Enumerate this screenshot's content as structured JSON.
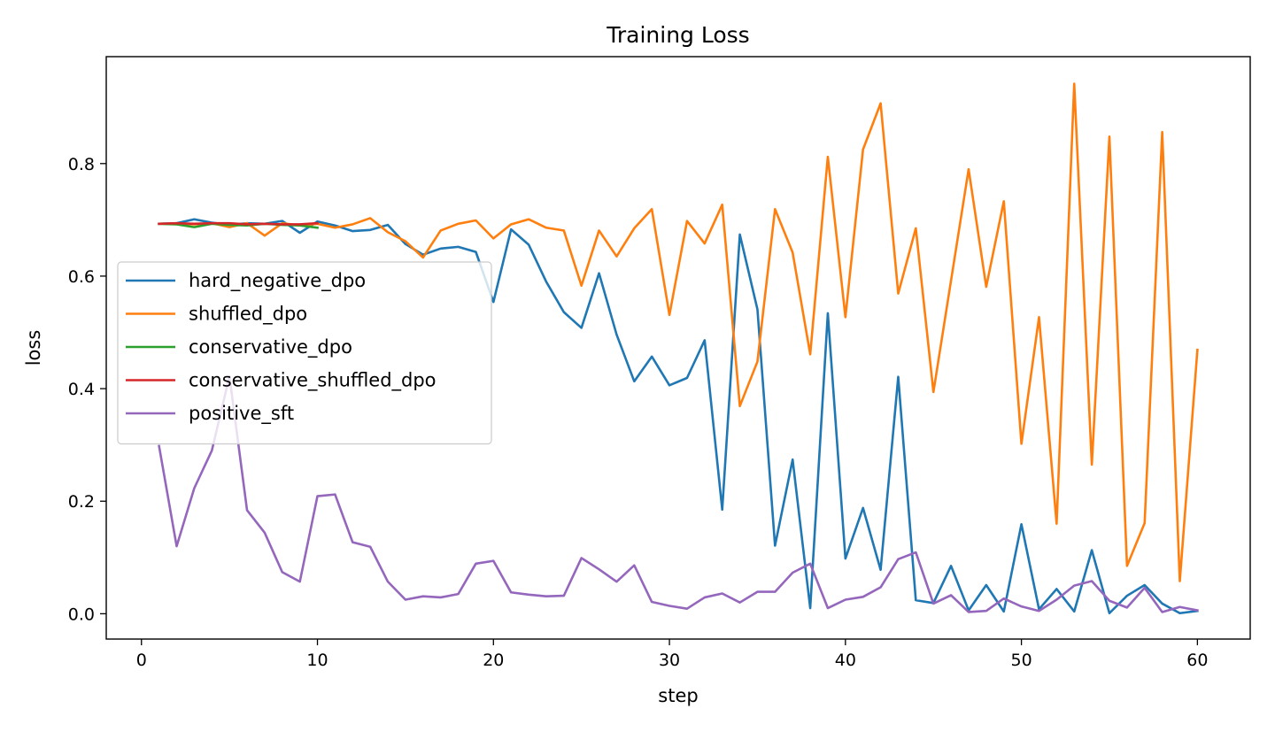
{
  "chart_data": {
    "type": "line",
    "title": "Training Loss",
    "xlabel": "step",
    "ylabel": "loss",
    "xlim": [
      -2,
      63
    ],
    "ylim": [
      -0.045,
      0.99
    ],
    "xticks": [
      0,
      10,
      20,
      30,
      40,
      50,
      60
    ],
    "yticks": [
      0.0,
      0.2,
      0.4,
      0.6,
      0.8
    ],
    "grid": false,
    "legend_position": "center-left",
    "series": [
      {
        "name": "hard_negative_dpo",
        "color": "#1f77b4",
        "x": [
          1,
          2,
          3,
          4,
          5,
          6,
          7,
          8,
          9,
          10,
          11,
          12,
          13,
          14,
          15,
          16,
          17,
          18,
          19,
          20,
          21,
          22,
          23,
          24,
          25,
          26,
          27,
          28,
          29,
          30,
          31,
          32,
          33,
          34,
          35,
          36,
          37,
          38,
          39,
          40,
          41,
          42,
          43,
          44,
          45,
          46,
          47,
          48,
          49,
          50,
          51,
          52,
          53,
          54,
          55,
          56,
          57,
          58,
          59,
          60
        ],
        "y": [
          0.693,
          0.694,
          0.701,
          0.695,
          0.691,
          0.694,
          0.693,
          0.698,
          0.677,
          0.697,
          0.69,
          0.68,
          0.682,
          0.691,
          0.657,
          0.638,
          0.649,
          0.652,
          0.643,
          0.554,
          0.683,
          0.656,
          0.59,
          0.536,
          0.508,
          0.605,
          0.496,
          0.413,
          0.457,
          0.406,
          0.419,
          0.486,
          0.185,
          0.674,
          0.541,
          0.121,
          0.274,
          0.01,
          0.534,
          0.098,
          0.188,
          0.078,
          0.421,
          0.024,
          0.019,
          0.085,
          0.006,
          0.051,
          0.004,
          0.159,
          0.008,
          0.044,
          0.004,
          0.113,
          0.001,
          0.032,
          0.051,
          0.018,
          0.001,
          0.005
        ]
      },
      {
        "name": "shuffled_dpo",
        "color": "#ff7f0e",
        "x": [
          1,
          2,
          3,
          4,
          5,
          6,
          7,
          8,
          9,
          10,
          11,
          12,
          13,
          14,
          15,
          16,
          17,
          18,
          19,
          20,
          21,
          22,
          23,
          24,
          25,
          26,
          27,
          28,
          29,
          30,
          31,
          32,
          33,
          34,
          35,
          36,
          37,
          38,
          39,
          40,
          41,
          42,
          43,
          44,
          45,
          46,
          47,
          48,
          49,
          50,
          51,
          52,
          53,
          54,
          55,
          56,
          57,
          58,
          59,
          60
        ],
        "y": [
          0.693,
          0.693,
          0.692,
          0.694,
          0.687,
          0.694,
          0.672,
          0.694,
          0.69,
          0.693,
          0.686,
          0.692,
          0.703,
          0.678,
          0.662,
          0.633,
          0.681,
          0.693,
          0.699,
          0.667,
          0.692,
          0.701,
          0.686,
          0.681,
          0.583,
          0.681,
          0.635,
          0.685,
          0.719,
          0.531,
          0.698,
          0.658,
          0.727,
          0.369,
          0.448,
          0.719,
          0.642,
          0.461,
          0.812,
          0.527,
          0.825,
          0.907,
          0.569,
          0.685,
          0.394,
          0.592,
          0.79,
          0.581,
          0.733,
          0.302,
          0.527,
          0.16,
          0.942,
          0.265,
          0.848,
          0.085,
          0.161,
          0.856,
          0.058,
          0.469
        ]
      },
      {
        "name": "conservative_dpo",
        "color": "#2ca02c",
        "x": [
          1,
          2,
          3,
          4,
          5,
          6,
          7,
          8,
          9,
          10
        ],
        "y": [
          0.693,
          0.692,
          0.687,
          0.693,
          0.691,
          0.69,
          0.693,
          0.691,
          0.69,
          0.686
        ]
      },
      {
        "name": "conservative_shuffled_dpo",
        "color": "#d62728",
        "x": [
          1,
          2,
          3,
          4,
          5,
          6,
          7,
          8,
          9,
          10
        ],
        "y": [
          0.693,
          0.694,
          0.693,
          0.694,
          0.694,
          0.692,
          0.693,
          0.692,
          0.692,
          0.694
        ]
      },
      {
        "name": "positive_sft",
        "color": "#9467bd",
        "x": [
          1,
          2,
          3,
          4,
          5,
          6,
          7,
          8,
          9,
          10,
          11,
          12,
          13,
          14,
          15,
          16,
          17,
          18,
          19,
          20,
          21,
          22,
          23,
          24,
          25,
          26,
          27,
          28,
          29,
          30,
          31,
          32,
          33,
          34,
          35,
          36,
          37,
          38,
          39,
          40,
          41,
          42,
          43,
          44,
          45,
          46,
          47,
          48,
          49,
          50,
          51,
          52,
          53,
          54,
          55,
          56,
          57,
          58,
          59,
          60
        ],
        "y": [
          0.298,
          0.12,
          0.223,
          0.29,
          0.422,
          0.184,
          0.144,
          0.074,
          0.057,
          0.209,
          0.212,
          0.127,
          0.119,
          0.057,
          0.025,
          0.031,
          0.029,
          0.035,
          0.089,
          0.094,
          0.038,
          0.034,
          0.031,
          0.032,
          0.099,
          0.079,
          0.057,
          0.086,
          0.021,
          0.014,
          0.009,
          0.029,
          0.036,
          0.02,
          0.039,
          0.039,
          0.073,
          0.089,
          0.01,
          0.025,
          0.03,
          0.047,
          0.097,
          0.109,
          0.018,
          0.033,
          0.003,
          0.005,
          0.027,
          0.013,
          0.005,
          0.025,
          0.05,
          0.058,
          0.023,
          0.011,
          0.046,
          0.003,
          0.012,
          0.006
        ]
      }
    ]
  }
}
